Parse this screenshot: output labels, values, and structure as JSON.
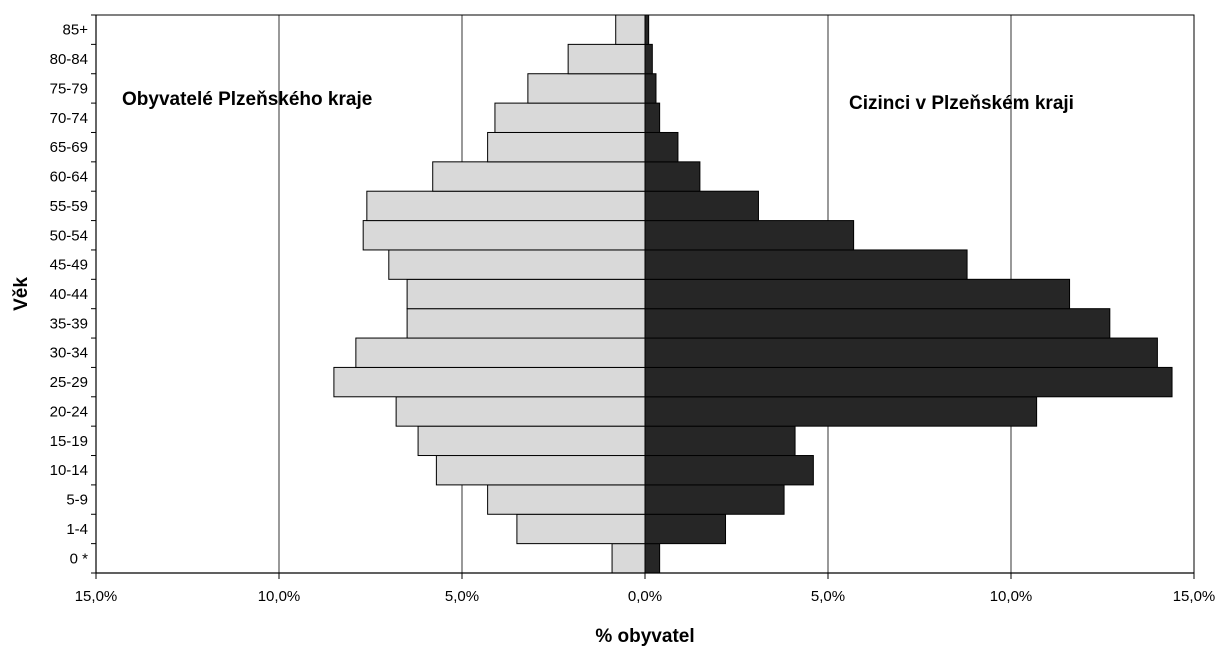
{
  "chart_data": {
    "type": "bar",
    "orientation": "horizontal",
    "layout": "population-pyramid",
    "categories": [
      "0 *",
      "1-4",
      "5-9",
      "10-14",
      "15-19",
      "20-24",
      "25-29",
      "30-34",
      "35-39",
      "40-44",
      "45-49",
      "50-54",
      "55-59",
      "60-64",
      "65-69",
      "70-74",
      "75-79",
      "80-84",
      "85+"
    ],
    "series": [
      {
        "name": "Obyvatelé Plzeňského kraje",
        "side": "left",
        "color": "#d9d9d9",
        "values": [
          0.9,
          3.5,
          4.3,
          5.7,
          6.2,
          6.8,
          8.5,
          7.9,
          6.5,
          6.5,
          7.0,
          7.7,
          7.6,
          5.8,
          4.3,
          4.1,
          3.2,
          2.1,
          0.8
        ]
      },
      {
        "name": "Cizinci v Plzeňském kraji",
        "side": "right",
        "color": "#262626",
        "values": [
          0.4,
          2.2,
          3.8,
          4.6,
          4.1,
          10.7,
          14.4,
          14.0,
          12.7,
          11.6,
          8.8,
          5.7,
          3.1,
          1.5,
          0.9,
          0.4,
          0.3,
          0.2,
          0.1
        ]
      }
    ],
    "xlabel": "% obyvatel",
    "ylabel": "Věk",
    "xlim": [
      -15,
      15
    ],
    "x_ticks": [
      -15,
      -10,
      -5,
      0,
      5,
      10,
      15
    ],
    "x_tick_labels": [
      "15,0%",
      "10,0%",
      "5,0%",
      "0,0%",
      "5,0%",
      "10,0%",
      "15,0%"
    ],
    "grid": "vertical",
    "annotations": [
      {
        "text": "Obyvatelé Plzeňského kraje",
        "side": "left"
      },
      {
        "text": "Cizinci v Plzeňském kraji",
        "side": "right"
      }
    ]
  }
}
